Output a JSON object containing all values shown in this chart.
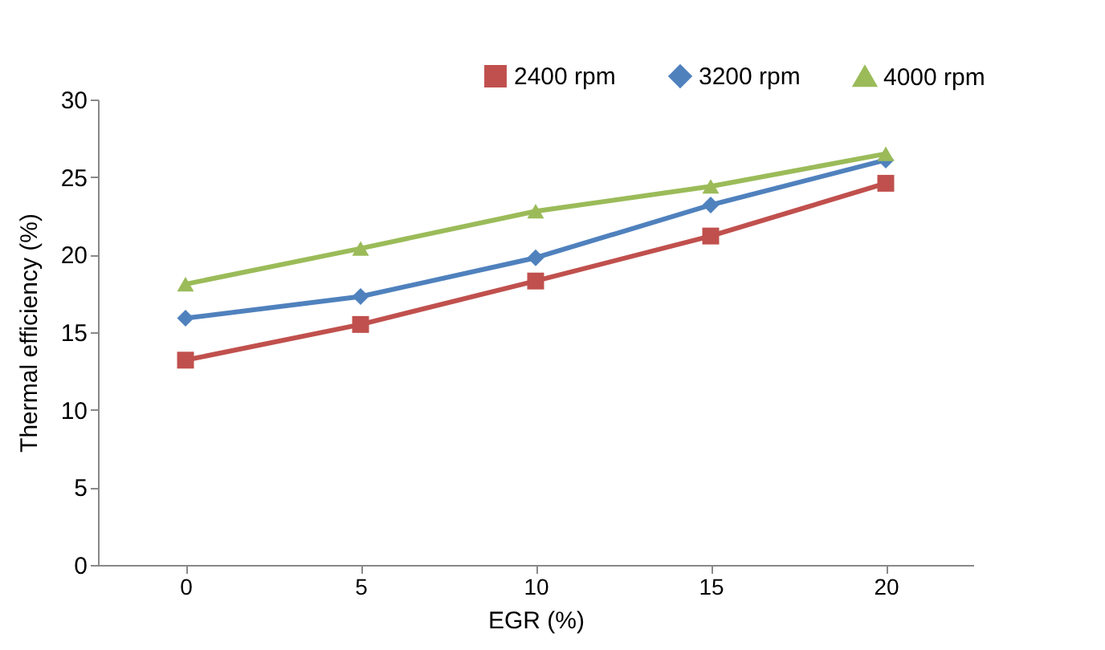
{
  "chart_data": {
    "type": "line",
    "xlabel": "EGR (%)",
    "ylabel": "Thermal efficiency (%)",
    "categories": [
      "0",
      "5",
      "10",
      "15",
      "20"
    ],
    "series": [
      {
        "name": "2400 rpm",
        "color": "#c0504d",
        "marker": "square",
        "values": [
          13.2,
          15.5,
          18.3,
          21.2,
          24.6
        ]
      },
      {
        "name": "3200 rpm",
        "color": "#4f81bd",
        "marker": "diamond",
        "values": [
          15.9,
          17.3,
          19.8,
          23.2,
          26.1
        ]
      },
      {
        "name": "4000 rpm",
        "color": "#9bbb59",
        "marker": "triangle",
        "values": [
          18.1,
          20.4,
          22.8,
          24.4,
          26.5
        ]
      }
    ],
    "ylim": [
      0,
      30
    ],
    "yticks": [
      0,
      5,
      10,
      15,
      20,
      25,
      30
    ],
    "grid": false,
    "legend": "top right"
  }
}
